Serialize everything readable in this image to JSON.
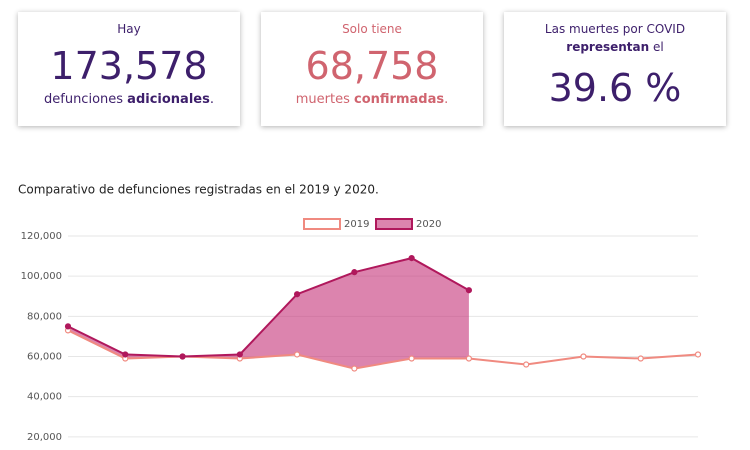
{
  "cards": [
    {
      "top": "Hay",
      "number": "173,578",
      "bottom": [
        "defunciones ",
        "adicionales",
        "."
      ]
    },
    {
      "top": "Solo tiene",
      "number": "68,758",
      "bottom": [
        "muertes ",
        "confirmadas",
        "."
      ]
    },
    {
      "top": [
        "Las muertes por COVID",
        "representan",
        " el"
      ],
      "number": "39.6 %"
    }
  ],
  "chart_data": {
    "type": "line",
    "title": "Comparativo de defunciones registradas en el 2019 y 2020.",
    "categories": [
      null,
      null,
      null,
      null,
      null,
      null,
      null,
      null,
      null,
      null,
      null,
      null
    ],
    "series": [
      {
        "name": "2019",
        "color": "#f08a80",
        "values": [
          73000,
          59000,
          60000,
          59000,
          61000,
          54000,
          59000,
          59000,
          56000,
          60000,
          59000,
          61000
        ]
      },
      {
        "name": "2020",
        "color": "#b0185c",
        "fill": "rgba(196,50,120,0.6)",
        "values": [
          75000,
          61000,
          60000,
          61000,
          91000,
          102000,
          109000,
          93000,
          null,
          null,
          null,
          null
        ]
      }
    ],
    "ylim": [
      0,
      120000
    ],
    "yticks": [
      {
        "value": 20000,
        "label": "20,000"
      },
      {
        "value": 40000,
        "label": "40,000"
      },
      {
        "value": 60000,
        "label": "60,000"
      },
      {
        "value": 80000,
        "label": "80,000"
      },
      {
        "value": 100000,
        "label": "100,000"
      },
      {
        "value": 120000,
        "label": "120,000"
      }
    ],
    "grid": true,
    "legend": "top"
  }
}
